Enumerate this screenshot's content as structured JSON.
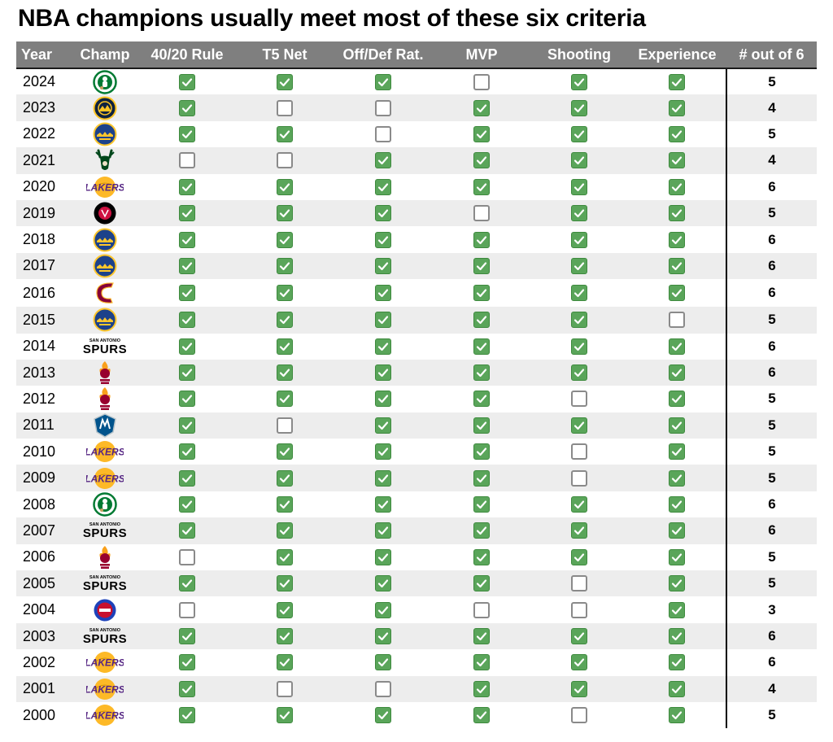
{
  "title": "NBA champions usually meet most of these six criteria",
  "chart_data": {
    "type": "table",
    "title": "NBA champions usually meet most of these six criteria",
    "columns": [
      "Year",
      "Champ",
      "40/20 Rule",
      "T5 Net",
      "Off/Def Rat.",
      "MVP",
      "Shooting",
      "Experience",
      "# out of 6"
    ],
    "rows": [
      {
        "year": "2024",
        "team": "celtics",
        "criteria": [
          true,
          true,
          true,
          false,
          true,
          true
        ],
        "count": "5"
      },
      {
        "year": "2023",
        "team": "nuggets",
        "criteria": [
          true,
          false,
          false,
          true,
          true,
          true
        ],
        "count": "4"
      },
      {
        "year": "2022",
        "team": "warriors",
        "criteria": [
          true,
          true,
          false,
          true,
          true,
          true
        ],
        "count": "5"
      },
      {
        "year": "2021",
        "team": "bucks",
        "criteria": [
          false,
          false,
          true,
          true,
          true,
          true
        ],
        "count": "4"
      },
      {
        "year": "2020",
        "team": "lakers",
        "criteria": [
          true,
          true,
          true,
          true,
          true,
          true
        ],
        "count": "6"
      },
      {
        "year": "2019",
        "team": "raptors",
        "criteria": [
          true,
          true,
          true,
          false,
          true,
          true
        ],
        "count": "5"
      },
      {
        "year": "2018",
        "team": "warriors",
        "criteria": [
          true,
          true,
          true,
          true,
          true,
          true
        ],
        "count": "6"
      },
      {
        "year": "2017",
        "team": "warriors",
        "criteria": [
          true,
          true,
          true,
          true,
          true,
          true
        ],
        "count": "6"
      },
      {
        "year": "2016",
        "team": "cavaliers",
        "criteria": [
          true,
          true,
          true,
          true,
          true,
          true
        ],
        "count": "6"
      },
      {
        "year": "2015",
        "team": "warriors",
        "criteria": [
          true,
          true,
          true,
          true,
          true,
          false
        ],
        "count": "5"
      },
      {
        "year": "2014",
        "team": "spurs",
        "criteria": [
          true,
          true,
          true,
          true,
          true,
          true
        ],
        "count": "6"
      },
      {
        "year": "2013",
        "team": "heat",
        "criteria": [
          true,
          true,
          true,
          true,
          true,
          true
        ],
        "count": "6"
      },
      {
        "year": "2012",
        "team": "heat",
        "criteria": [
          true,
          true,
          true,
          true,
          false,
          true
        ],
        "count": "5"
      },
      {
        "year": "2011",
        "team": "mavericks",
        "criteria": [
          true,
          false,
          true,
          true,
          true,
          true
        ],
        "count": "5"
      },
      {
        "year": "2010",
        "team": "lakers",
        "criteria": [
          true,
          true,
          true,
          true,
          false,
          true
        ],
        "count": "5"
      },
      {
        "year": "2009",
        "team": "lakers",
        "criteria": [
          true,
          true,
          true,
          true,
          false,
          true
        ],
        "count": "5"
      },
      {
        "year": "2008",
        "team": "celtics",
        "criteria": [
          true,
          true,
          true,
          true,
          true,
          true
        ],
        "count": "6"
      },
      {
        "year": "2007",
        "team": "spurs",
        "criteria": [
          true,
          true,
          true,
          true,
          true,
          true
        ],
        "count": "6"
      },
      {
        "year": "2006",
        "team": "heat",
        "criteria": [
          false,
          true,
          true,
          true,
          true,
          true
        ],
        "count": "5"
      },
      {
        "year": "2005",
        "team": "spurs",
        "criteria": [
          true,
          true,
          true,
          true,
          false,
          true
        ],
        "count": "5"
      },
      {
        "year": "2004",
        "team": "pistons",
        "criteria": [
          false,
          true,
          true,
          false,
          false,
          true
        ],
        "count": "3"
      },
      {
        "year": "2003",
        "team": "spurs",
        "criteria": [
          true,
          true,
          true,
          true,
          true,
          true
        ],
        "count": "6"
      },
      {
        "year": "2002",
        "team": "lakers",
        "criteria": [
          true,
          true,
          true,
          true,
          true,
          true
        ],
        "count": "6"
      },
      {
        "year": "2001",
        "team": "lakers",
        "criteria": [
          true,
          false,
          false,
          true,
          true,
          true
        ],
        "count": "4"
      },
      {
        "year": "2000",
        "team": "lakers",
        "criteria": [
          true,
          true,
          true,
          true,
          false,
          true
        ],
        "count": "5"
      }
    ]
  },
  "logos": {
    "celtics": {
      "icon": "celtics-logo-icon",
      "color": "#007a33"
    },
    "nuggets": {
      "icon": "nuggets-logo-icon",
      "color": "#0e2240",
      "accent": "#fec524"
    },
    "warriors": {
      "icon": "warriors-logo-icon",
      "color": "#1d428a",
      "accent": "#ffc72c"
    },
    "bucks": {
      "icon": "bucks-logo-icon",
      "color": "#00471b",
      "accent": "#eee1c6"
    },
    "lakers": {
      "icon": "lakers-logo-icon",
      "color": "#552583",
      "accent": "#fdb927"
    },
    "raptors": {
      "icon": "raptors-logo-icon",
      "color": "#000000",
      "accent": "#ce1141"
    },
    "cavaliers": {
      "icon": "cavaliers-logo-icon",
      "color": "#860038",
      "accent": "#fdbb30"
    },
    "spurs": {
      "icon": "spurs-logo-icon",
      "color": "#000000",
      "text": "SPURS",
      "small_text": "SAN ANTONIO"
    },
    "heat": {
      "icon": "heat-logo-icon",
      "color": "#98002e",
      "accent": "#f9a01b"
    },
    "mavericks": {
      "icon": "mavericks-logo-icon",
      "color": "#00538c",
      "accent": "#b8c4ca"
    },
    "pistons": {
      "icon": "pistons-logo-icon",
      "color": "#1d42ba",
      "accent": "#c8102e"
    }
  },
  "colors": {
    "header_bg": "#7f7f7f",
    "check_green": "#5aa55a",
    "row_stripe": "#ededed"
  }
}
